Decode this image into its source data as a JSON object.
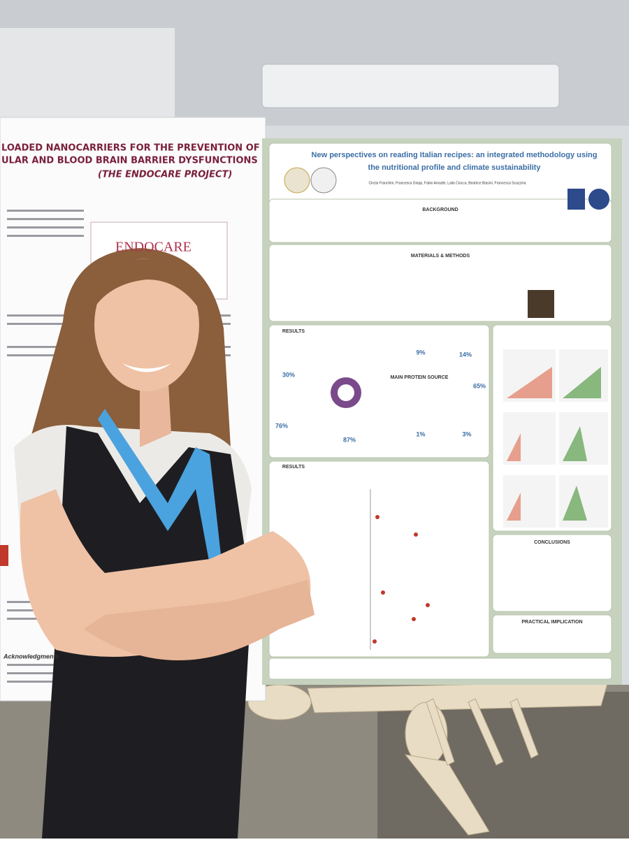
{
  "left_poster": {
    "title_lines": [
      "LOADED NANOCARRIERS FOR THE PREVENTION OF",
      "ULAR AND BLOOD BRAIN BARRIER DYSFUNCTIONS",
      "(THE ENDOCARE PROJECT)"
    ],
    "logo": "ENDOCARE",
    "acknowledgments": "Acknowledgments"
  },
  "right_poster": {
    "title_lines": [
      "New perspectives on reading Italian recipes: an integrated methodology using",
      "the nutritional profile and climate sustainability"
    ],
    "authors": "Cinzia Franchini, Francesca Giopp, Fabio Amadei, Laila Ciocca, Beatrice Biasini, Francesca Scazzina",
    "sections": [
      "BACKGROUND",
      "MATERIALS & METHODS",
      "RESULTS",
      "RESULTS",
      "MAIN PROTEIN SOURCE",
      "CONCLUSIONS",
      "PRACTICAL IMPLICATION"
    ],
    "stats": [
      "30%",
      "9%",
      "14%",
      "65%",
      "76%",
      "87%",
      "1%",
      "3%"
    ]
  }
}
